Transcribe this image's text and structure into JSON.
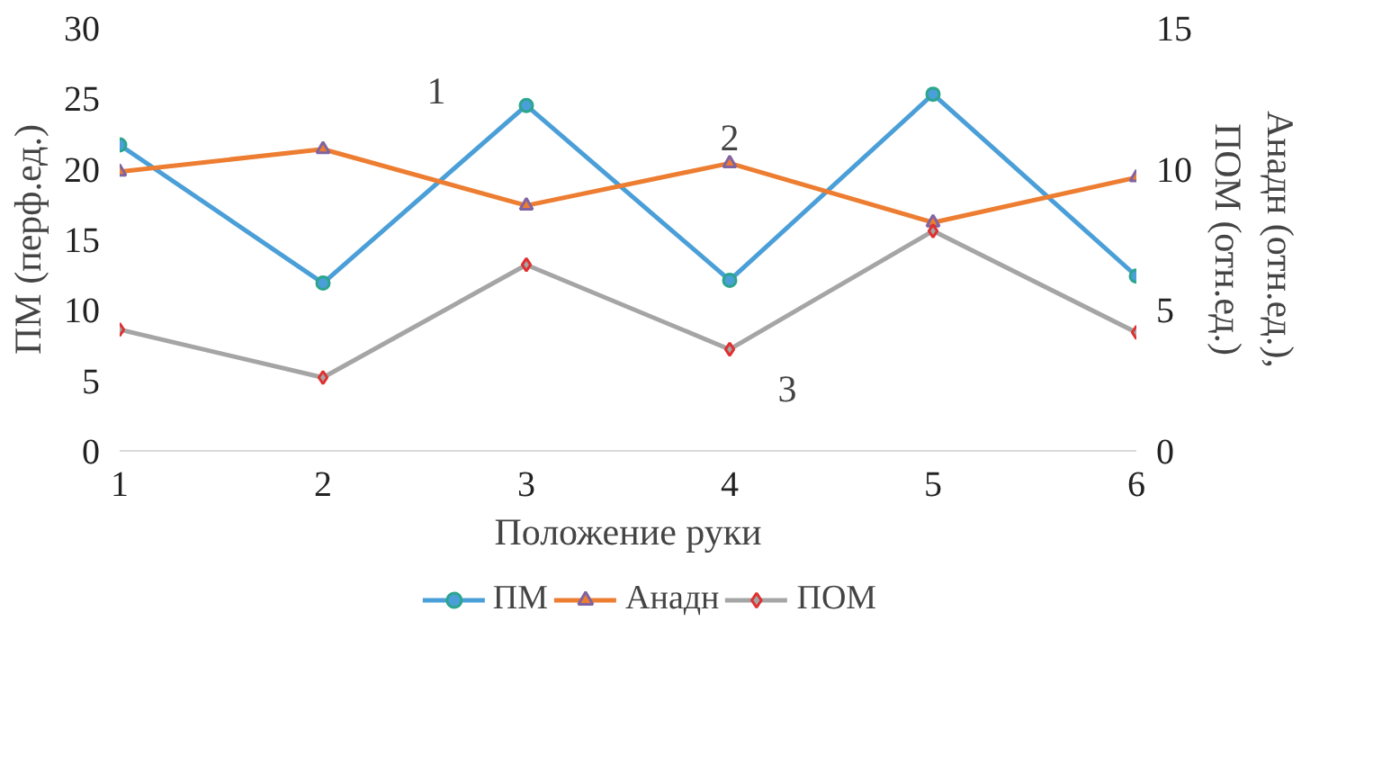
{
  "chart_data": {
    "type": "line",
    "xlabel": "Положение руки",
    "ylabel": "ПМ (перф.ед.)",
    "y2label": "Анадн (отн.ед.),\nПОМ (отн.ед.)",
    "x": [
      1,
      2,
      3,
      4,
      5,
      6
    ],
    "xlim": [
      1,
      6
    ],
    "xticks": [
      1,
      2,
      3,
      4,
      5,
      6
    ],
    "ylim": [
      0,
      30
    ],
    "yticks": [
      0,
      5,
      10,
      15,
      20,
      25,
      30
    ],
    "y2lim": [
      0,
      15
    ],
    "y2ticks": [
      0,
      5,
      10,
      15
    ],
    "series": [
      {
        "name": "ПМ",
        "color": "#4a9fd8",
        "marker": "circle",
        "values": [
          21.7,
          11.9,
          24.5,
          12.1,
          25.3,
          12.4
        ]
      },
      {
        "name": "Анадн",
        "color": "#ed7d31",
        "marker": "triangle",
        "axis": "y2",
        "values": [
          9.9,
          10.7,
          8.7,
          10.2,
          8.1,
          9.7
        ]
      },
      {
        "name": "ПОМ",
        "color": "#a5a5a5",
        "marker": "diamond",
        "axis": "y2",
        "values": [
          4.3,
          2.6,
          6.6,
          3.6,
          7.8,
          4.2
        ]
      }
    ],
    "annotations": [
      "1",
      "2",
      "3"
    ],
    "grid": false,
    "legend": "bottom",
    "line_style": "solid"
  }
}
